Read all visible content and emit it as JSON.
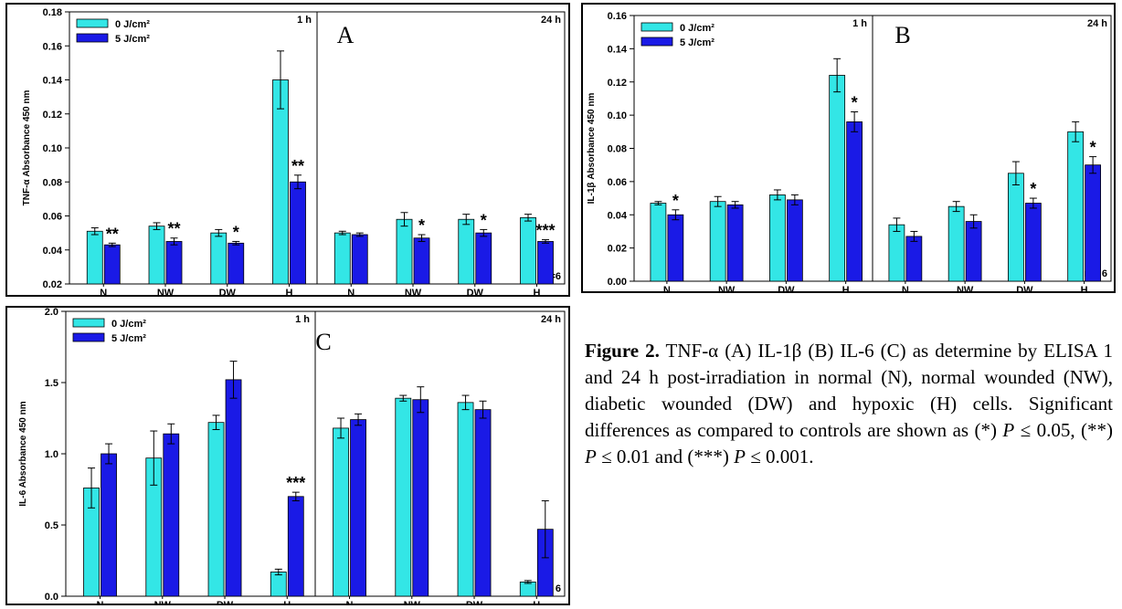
{
  "colors": {
    "control": "#33e6e6",
    "treated": "#1a1ae6",
    "error": "#000000"
  },
  "legend": {
    "control": "0 J/cm²",
    "treated": "5 J/cm²"
  },
  "caption": {
    "title": "Figure 2.",
    "p1": "TNF-α (A) IL-1β (B) IL-6 (C) as determine by ELISA 1 and 24 h post-irradiation in normal (N), normal wounded (NW), diabetic wounded (DW) and hypoxic (H) cells. Significant differences as compared to controls are shown as (*)",
    "P": "P",
    "le05": "≤ 0.05, (**)",
    "le01": "≤ 0.01 and (***)",
    "le001": "≤ 0.001."
  },
  "chart_data": [
    {
      "type": "bar",
      "panel_label": "A",
      "ylabel": "TNF-α Absorbance 450 nm",
      "ylim": [
        0.02,
        0.18
      ],
      "yticks": [
        0.02,
        0.04,
        0.06,
        0.08,
        0.1,
        0.12,
        0.14,
        0.16,
        0.18
      ],
      "tick_labels": [
        "0.02",
        "0.04",
        "0.06",
        "0.08",
        "0.10",
        "0.12",
        "0.14",
        "0.16",
        "0.18"
      ],
      "categories": [
        "N",
        "NW",
        "DW",
        "H"
      ],
      "n_label": "n=6",
      "time_labels": [
        "1 h",
        "24 h"
      ],
      "groups": [
        {
          "time": "1 h",
          "series": [
            {
              "name": "0 J/cm²",
              "values": [
                0.051,
                0.054,
                0.05,
                0.14
              ],
              "errors": [
                0.002,
                0.002,
                0.002,
                0.017
              ]
            },
            {
              "name": "5 J/cm²",
              "values": [
                0.043,
                0.045,
                0.044,
                0.08
              ],
              "errors": [
                0.001,
                0.002,
                0.001,
                0.004
              ]
            }
          ],
          "stars": [
            "**",
            "**",
            "*",
            "**"
          ]
        },
        {
          "time": "24 h",
          "series": [
            {
              "name": "0 J/cm²",
              "values": [
                0.05,
                0.058,
                0.058,
                0.059
              ],
              "errors": [
                0.001,
                0.004,
                0.003,
                0.002
              ]
            },
            {
              "name": "5 J/cm²",
              "values": [
                0.049,
                0.047,
                0.05,
                0.045
              ],
              "errors": [
                0.001,
                0.002,
                0.002,
                0.001
              ]
            }
          ],
          "stars": [
            "",
            "*",
            "*",
            "***"
          ]
        }
      ]
    },
    {
      "type": "bar",
      "panel_label": "B",
      "ylabel": "IL-1β Absorbance 450 nm",
      "ylim": [
        0.0,
        0.16
      ],
      "yticks": [
        0.0,
        0.02,
        0.04,
        0.06,
        0.08,
        0.1,
        0.12,
        0.14,
        0.16
      ],
      "tick_labels": [
        "0.00",
        "0.02",
        "0.04",
        "0.06",
        "0.08",
        "0.10",
        "0.12",
        "0.14",
        "0.16"
      ],
      "categories": [
        "N",
        "NW",
        "DW",
        "H"
      ],
      "n_label": "n = 6",
      "time_labels": [
        "1 h",
        "24 h"
      ],
      "groups": [
        {
          "time": "1 h",
          "series": [
            {
              "name": "0 J/cm²",
              "values": [
                0.047,
                0.048,
                0.052,
                0.124
              ],
              "errors": [
                0.001,
                0.003,
                0.003,
                0.01
              ]
            },
            {
              "name": "5 J/cm²",
              "values": [
                0.04,
                0.046,
                0.049,
                0.096
              ],
              "errors": [
                0.003,
                0.002,
                0.003,
                0.006
              ]
            }
          ],
          "stars": [
            "*",
            "",
            "",
            "*"
          ]
        },
        {
          "time": "24 h",
          "series": [
            {
              "name": "0 J/cm²",
              "values": [
                0.034,
                0.045,
                0.065,
                0.09
              ],
              "errors": [
                0.004,
                0.003,
                0.007,
                0.006
              ]
            },
            {
              "name": "5 J/cm²",
              "values": [
                0.027,
                0.036,
                0.047,
                0.07
              ],
              "errors": [
                0.003,
                0.004,
                0.003,
                0.005
              ]
            }
          ],
          "stars": [
            "",
            "",
            "*",
            "*"
          ]
        }
      ]
    },
    {
      "type": "bar",
      "panel_label": "C",
      "ylabel": "IL-6 Absorbance 450 nm",
      "ylim": [
        0.0,
        2.0
      ],
      "yticks": [
        0.0,
        0.5,
        1.0,
        1.5,
        2.0
      ],
      "tick_labels": [
        "0.0",
        "0.5",
        "1.0",
        "1.5",
        "2.0"
      ],
      "categories": [
        "N",
        "NW",
        "DW",
        "H"
      ],
      "n_label": "n = 6",
      "time_labels": [
        "1 h",
        "24 h"
      ],
      "groups": [
        {
          "time": "1 h",
          "series": [
            {
              "name": "0 J/cm²",
              "values": [
                0.76,
                0.97,
                1.22,
                0.17
              ],
              "errors": [
                0.14,
                0.19,
                0.05,
                0.02
              ]
            },
            {
              "name": "5 J/cm²",
              "values": [
                1.0,
                1.14,
                1.52,
                0.7
              ],
              "errors": [
                0.07,
                0.07,
                0.13,
                0.03
              ]
            }
          ],
          "stars": [
            "",
            "",
            "",
            "***"
          ]
        },
        {
          "time": "24 h",
          "series": [
            {
              "name": "0 J/cm²",
              "values": [
                1.18,
                1.39,
                1.36,
                0.1
              ],
              "errors": [
                0.07,
                0.02,
                0.05,
                0.01
              ]
            },
            {
              "name": "5 J/cm²",
              "values": [
                1.24,
                1.38,
                1.31,
                0.47
              ],
              "errors": [
                0.04,
                0.09,
                0.06,
                0.2
              ]
            }
          ],
          "stars": [
            "",
            "",
            "",
            ""
          ]
        }
      ]
    }
  ]
}
